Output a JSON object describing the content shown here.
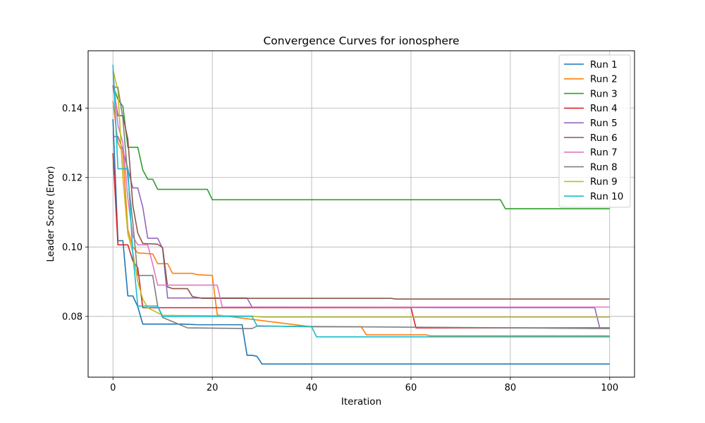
{
  "chart_data": {
    "type": "line",
    "title": "Convergence Curves for ionosphere",
    "xlabel": "Iteration",
    "ylabel": "Leader Score (Error)",
    "xlim": [
      -5,
      105
    ],
    "ylim": [
      0.0625,
      0.1565
    ],
    "xticks": [
      0,
      20,
      40,
      60,
      80,
      100
    ],
    "yticks": [
      0.08,
      0.1,
      0.12,
      0.14
    ],
    "ytick_labels": [
      "0.08",
      "0.10",
      "0.12",
      "0.14"
    ],
    "grid": true,
    "legend_position": "top-right",
    "series": [
      {
        "name": "Run 1",
        "color": "#1f77b4",
        "points": [
          [
            0,
            0.1368
          ],
          [
            1,
            0.1018
          ],
          [
            2,
            0.1018
          ],
          [
            3,
            0.0859
          ],
          [
            4,
            0.0859
          ],
          [
            5,
            0.0828
          ],
          [
            6,
            0.0778
          ],
          [
            14,
            0.0778
          ],
          [
            17,
            0.0776
          ],
          [
            26,
            0.0776
          ],
          [
            27,
            0.0688
          ],
          [
            28,
            0.0688
          ],
          [
            29,
            0.0685
          ],
          [
            30,
            0.0663
          ],
          [
            100,
            0.0663
          ]
        ]
      },
      {
        "name": "Run 2",
        "color": "#ff7f0e",
        "points": [
          [
            0,
            0.142
          ],
          [
            1,
            0.13
          ],
          [
            2,
            0.127
          ],
          [
            3,
            0.105
          ],
          [
            4,
            0.1
          ],
          [
            5,
            0.0983
          ],
          [
            8,
            0.098
          ],
          [
            9,
            0.0952
          ],
          [
            11,
            0.0952
          ],
          [
            12,
            0.0924
          ],
          [
            16,
            0.0924
          ],
          [
            17,
            0.092
          ],
          [
            20,
            0.0918
          ],
          [
            21,
            0.0804
          ],
          [
            40,
            0.077
          ],
          [
            50,
            0.077
          ],
          [
            51,
            0.0747
          ],
          [
            63,
            0.0747
          ],
          [
            64,
            0.0744
          ],
          [
            100,
            0.0744
          ]
        ]
      },
      {
        "name": "Run 3",
        "color": "#2ca02c",
        "points": [
          [
            0,
            0.1465
          ],
          [
            1,
            0.1425
          ],
          [
            2,
            0.1405
          ],
          [
            3,
            0.1287
          ],
          [
            5,
            0.1287
          ],
          [
            6,
            0.1222
          ],
          [
            7,
            0.1195
          ],
          [
            8,
            0.1195
          ],
          [
            9,
            0.1166
          ],
          [
            19,
            0.1166
          ],
          [
            20,
            0.1136
          ],
          [
            78,
            0.1136
          ],
          [
            79,
            0.111
          ],
          [
            100,
            0.111
          ]
        ]
      },
      {
        "name": "Run 4",
        "color": "#d62728",
        "points": [
          [
            0,
            0.127
          ],
          [
            1,
            0.1006
          ],
          [
            3,
            0.1006
          ],
          [
            4,
            0.096
          ],
          [
            5,
            0.094
          ],
          [
            6,
            0.0825
          ],
          [
            60,
            0.0825
          ],
          [
            61,
            0.0767
          ],
          [
            100,
            0.0767
          ]
        ]
      },
      {
        "name": "Run 5",
        "color": "#9467bd",
        "points": [
          [
            0,
            0.1318
          ],
          [
            1,
            0.1318
          ],
          [
            2,
            0.128
          ],
          [
            3,
            0.1225
          ],
          [
            4,
            0.117
          ],
          [
            5,
            0.117
          ],
          [
            6,
            0.1115
          ],
          [
            7,
            0.1025
          ],
          [
            9,
            0.1025
          ],
          [
            10,
            0.0995
          ],
          [
            11,
            0.0853
          ],
          [
            27,
            0.0853
          ],
          [
            28,
            0.0827
          ],
          [
            70,
            0.0825
          ],
          [
            97,
            0.0825
          ],
          [
            98,
            0.0767
          ],
          [
            100,
            0.0767
          ]
        ]
      },
      {
        "name": "Run 6",
        "color": "#8c564b",
        "points": [
          [
            0,
            0.1465
          ],
          [
            1,
            0.1378
          ],
          [
            2,
            0.1378
          ],
          [
            3,
            0.131
          ],
          [
            4,
            0.112
          ],
          [
            5,
            0.104
          ],
          [
            6,
            0.101
          ],
          [
            9,
            0.1008
          ],
          [
            10,
            0.0998
          ],
          [
            11,
            0.0885
          ],
          [
            12,
            0.088
          ],
          [
            15,
            0.088
          ],
          [
            16,
            0.0857
          ],
          [
            18,
            0.0852
          ],
          [
            56,
            0.0852
          ],
          [
            57,
            0.085
          ],
          [
            100,
            0.085
          ]
        ]
      },
      {
        "name": "Run 7",
        "color": "#e377c2",
        "points": [
          [
            0,
            0.1505
          ],
          [
            1,
            0.135
          ],
          [
            2,
            0.13
          ],
          [
            3,
            0.114
          ],
          [
            4,
            0.103
          ],
          [
            5,
            0.1006
          ],
          [
            7,
            0.1006
          ],
          [
            8,
            0.095
          ],
          [
            9,
            0.089
          ],
          [
            21,
            0.089
          ],
          [
            22,
            0.0827
          ],
          [
            100,
            0.0827
          ]
        ]
      },
      {
        "name": "Run 8",
        "color": "#7f7f7f",
        "points": [
          [
            0,
            0.146
          ],
          [
            1,
            0.146
          ],
          [
            2,
            0.137
          ],
          [
            3,
            0.12
          ],
          [
            4,
            0.107
          ],
          [
            5,
            0.0918
          ],
          [
            8,
            0.0918
          ],
          [
            9,
            0.083
          ],
          [
            10,
            0.0797
          ],
          [
            15,
            0.0767
          ],
          [
            28,
            0.0765
          ],
          [
            29,
            0.0772
          ],
          [
            100,
            0.0765
          ]
        ]
      },
      {
        "name": "Run 9",
        "color": "#bcbd22",
        "points": [
          [
            0,
            0.151
          ],
          [
            1,
            0.145
          ],
          [
            2,
            0.12
          ],
          [
            3,
            0.1037
          ],
          [
            4,
            0.0985
          ],
          [
            5,
            0.09
          ],
          [
            6,
            0.085
          ],
          [
            7,
            0.0825
          ],
          [
            10,
            0.0803
          ],
          [
            28,
            0.0801
          ],
          [
            30,
            0.0798
          ],
          [
            100,
            0.0798
          ]
        ]
      },
      {
        "name": "Run 10",
        "color": "#17becf",
        "points": [
          [
            0,
            0.1525
          ],
          [
            1,
            0.1225
          ],
          [
            3,
            0.1225
          ],
          [
            4,
            0.098
          ],
          [
            5,
            0.083
          ],
          [
            9,
            0.083
          ],
          [
            10,
            0.08
          ],
          [
            28,
            0.08
          ],
          [
            29,
            0.0773
          ],
          [
            40,
            0.077
          ],
          [
            41,
            0.0741
          ],
          [
            100,
            0.0741
          ]
        ]
      }
    ]
  }
}
